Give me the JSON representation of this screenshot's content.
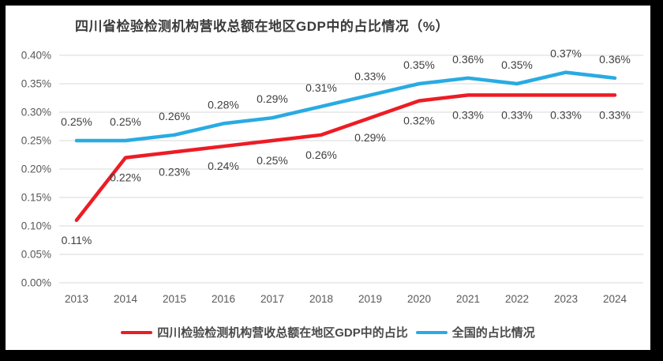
{
  "frame": {
    "background_color": "#000000",
    "panel_color": "#ffffff"
  },
  "chart": {
    "title": "四川省检验检测机构营收总额在地区GDP中的占比情况（%）",
    "legend": [
      {
        "label": "四川检验检测机构营收总额在地区GDP中的占比",
        "color": "#ED1C24"
      },
      {
        "label": "全国的占比情况",
        "color": "#29ABE2"
      }
    ]
  },
  "chart_data": {
    "type": "line",
    "title": "四川省检验检测机构营收总额在地区GDP中的占比情况（%）",
    "categories": [
      "2013",
      "2014",
      "2015",
      "2016",
      "2017",
      "2018",
      "2019",
      "2020",
      "2021",
      "2022",
      "2023",
      "2024"
    ],
    "series": [
      {
        "name": "全国的占比情况",
        "color": "#29ABE2",
        "values_pct": [
          0.25,
          0.25,
          0.26,
          0.28,
          0.29,
          0.31,
          0.33,
          0.35,
          0.36,
          0.35,
          0.37,
          0.36
        ],
        "labels": [
          "0.25%",
          "0.25%",
          "0.26%",
          "0.28%",
          "0.29%",
          "0.31%",
          "0.33%",
          "0.35%",
          "0.36%",
          "0.35%",
          "0.37%",
          "0.36%"
        ],
        "label_position": "above"
      },
      {
        "name": "四川检验检测机构营收总额在地区GDP中的占比",
        "color": "#ED1C24",
        "values_pct": [
          0.11,
          0.22,
          0.23,
          0.24,
          0.25,
          0.26,
          0.29,
          0.32,
          0.33,
          0.33,
          0.33,
          0.33
        ],
        "labels": [
          "0.11%",
          "0.22%",
          "0.23%",
          "0.24%",
          "0.25%",
          "0.26%",
          "0.29%",
          "0.32%",
          "0.33%",
          "0.33%",
          "0.33%",
          "0.33%"
        ],
        "label_position": "below"
      }
    ],
    "y_axis": {
      "min_pct": 0.0,
      "max_pct": 0.4,
      "step_pct": 0.05,
      "tick_labels": [
        "0.40%",
        "0.35%",
        "0.30%",
        "0.25%",
        "0.20%",
        "0.15%",
        "0.10%",
        "0.05%",
        "0.00%"
      ]
    },
    "x_axis": {
      "label": ""
    },
    "grid": "horizontal-only",
    "gridline_color": "#D9D9D9",
    "axis_text_color": "#595959",
    "data_label_color": "#3f3f3f",
    "legend_position": "bottom"
  }
}
